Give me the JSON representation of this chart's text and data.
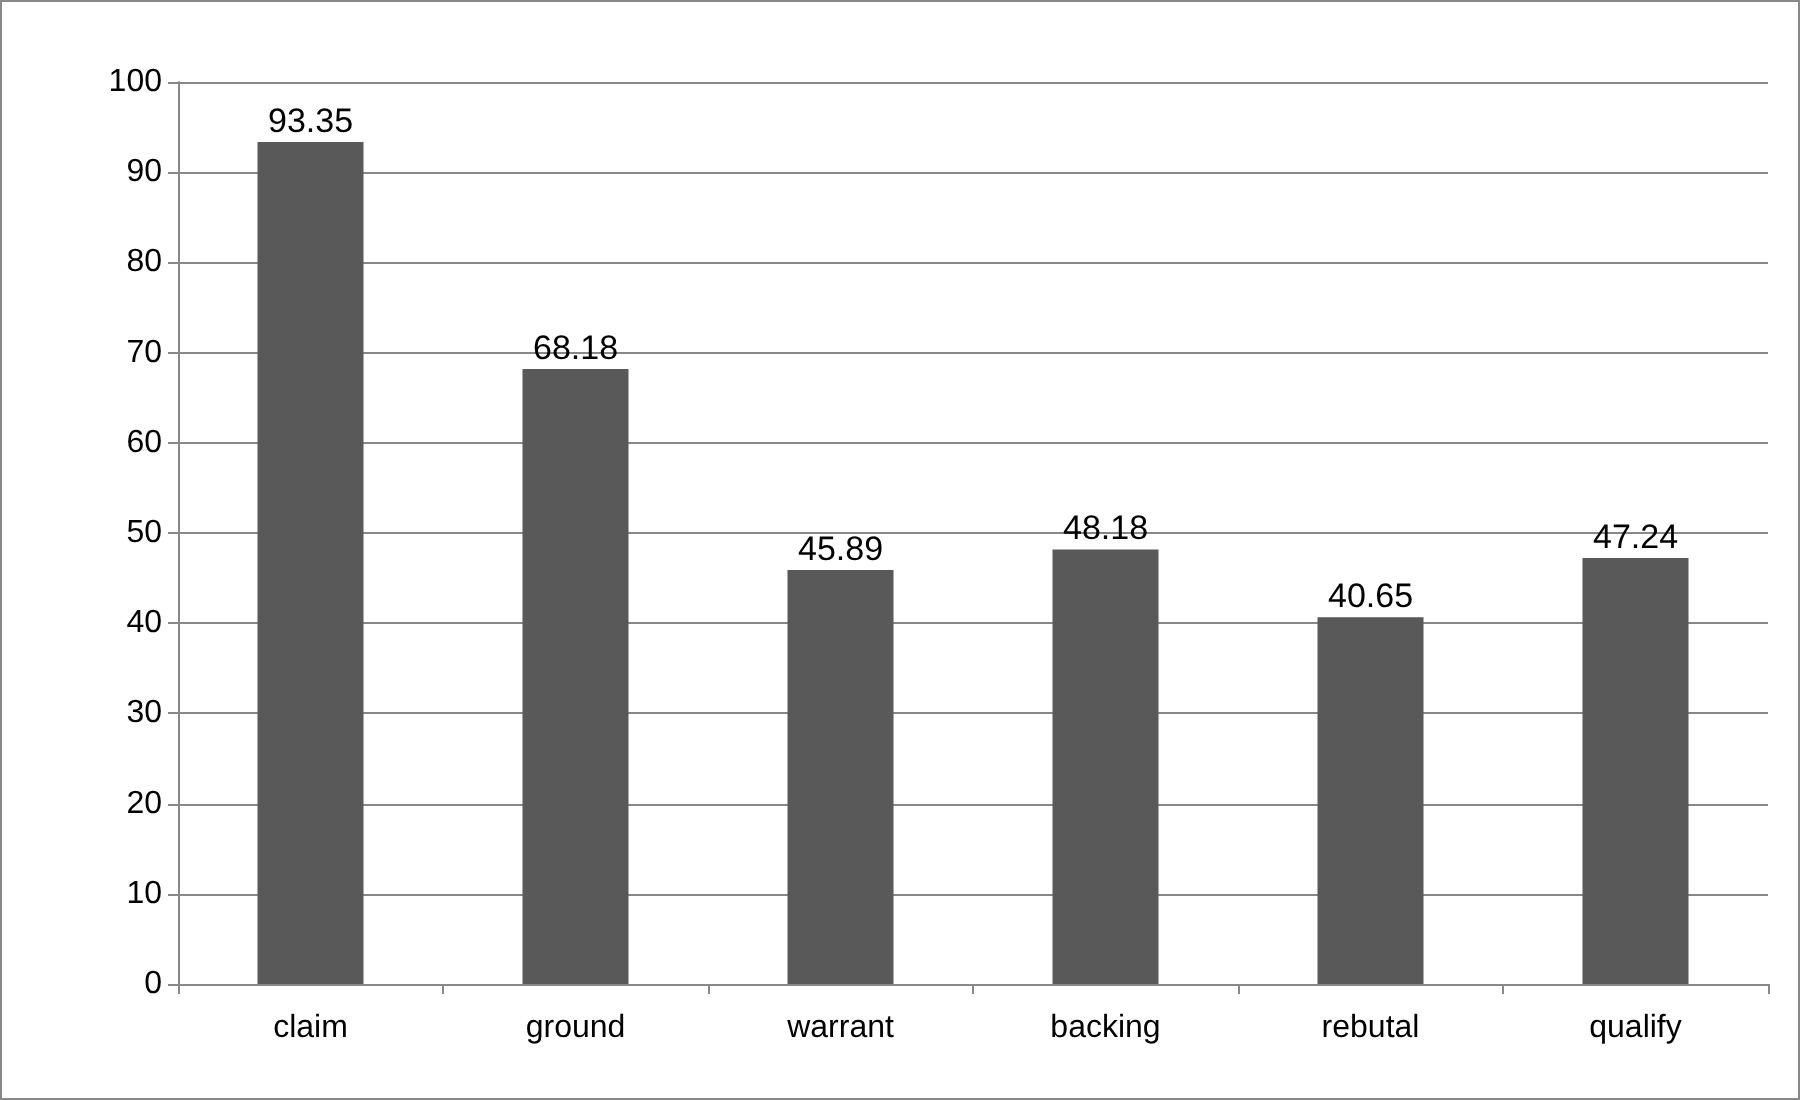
{
  "chart_data": {
    "type": "bar",
    "categories": [
      "claim",
      "ground",
      "warrant",
      "backing",
      "rebutal",
      "qualify"
    ],
    "values": [
      93.35,
      68.18,
      45.89,
      48.18,
      40.65,
      47.24
    ],
    "color": "#595959",
    "ylim": [
      0,
      100
    ],
    "yticks": [
      0,
      10,
      20,
      30,
      40,
      50,
      60,
      70,
      80,
      90,
      100
    ],
    "grid": "y",
    "data_labels": true
  }
}
